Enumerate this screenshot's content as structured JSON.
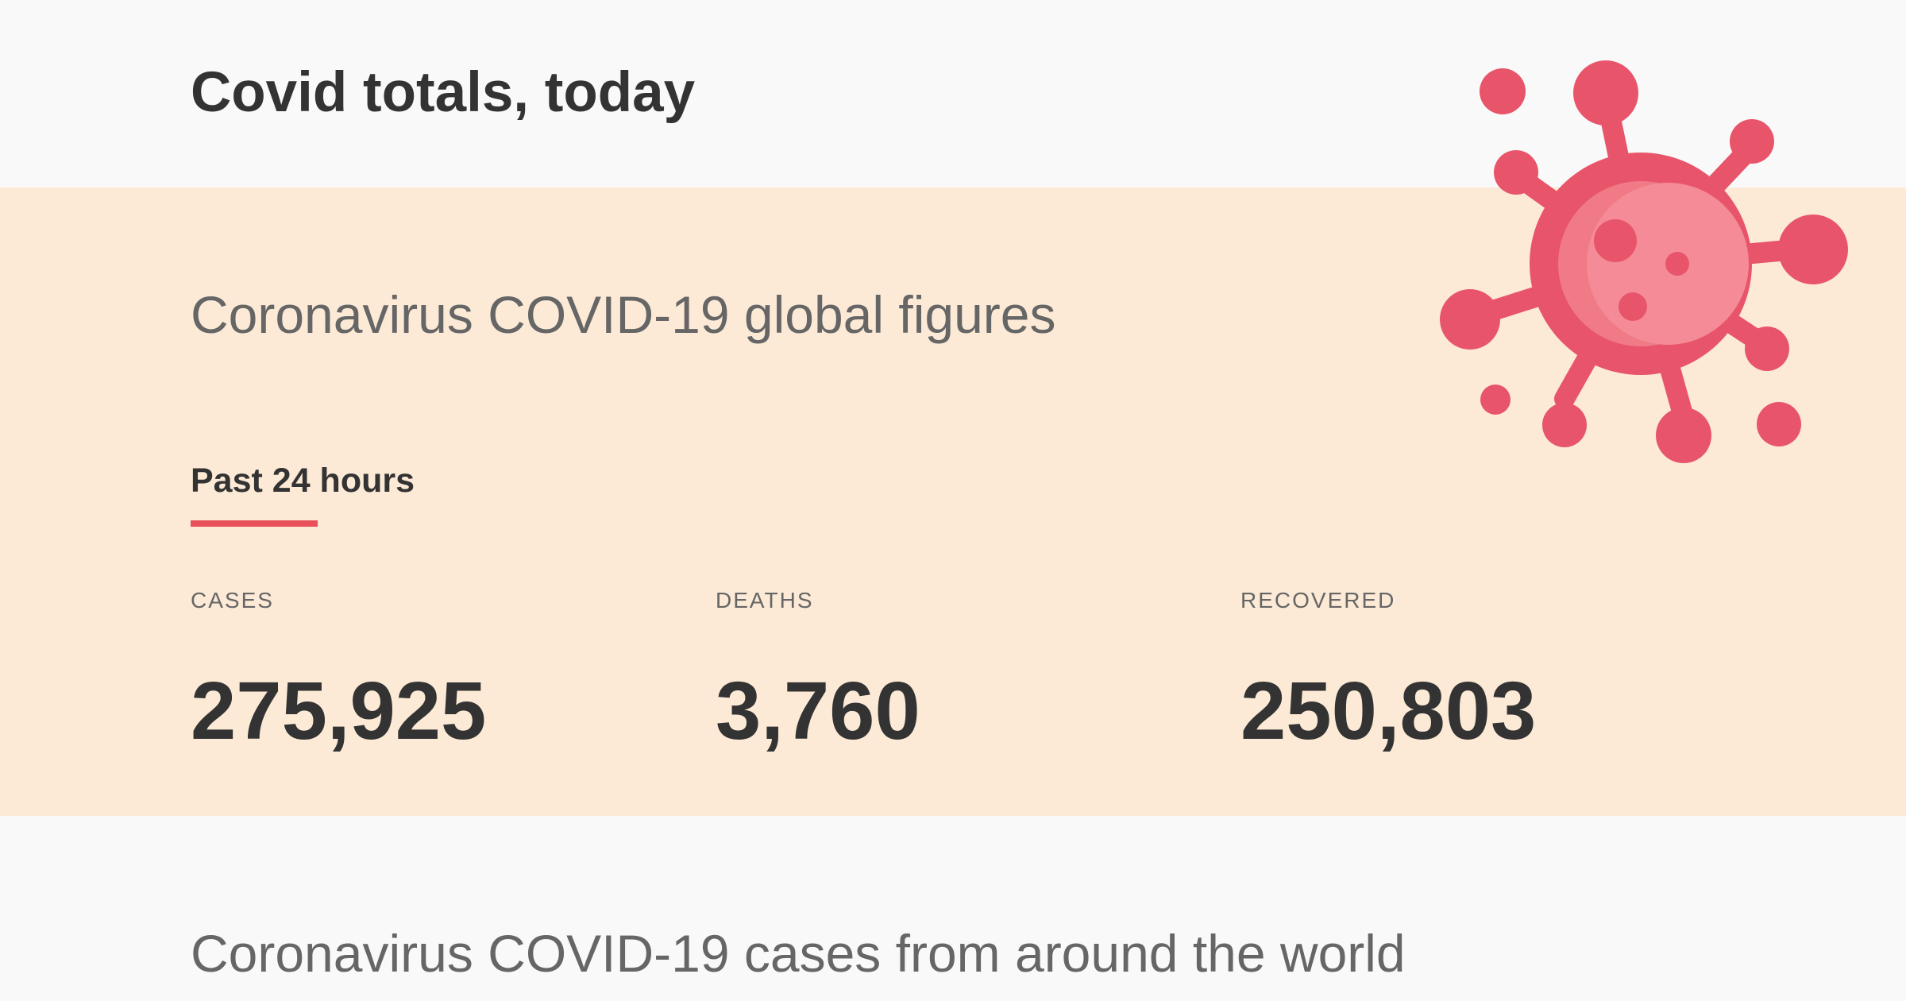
{
  "header": {
    "title": "Covid totals, today"
  },
  "summary": {
    "heading": "Coronavirus COVID-19 global figures",
    "period_label": "Past 24 hours",
    "accent_color": "#e8505b",
    "stats": [
      {
        "label": "CASES",
        "value": "275,925"
      },
      {
        "label": "DEATHS",
        "value": "3,760"
      },
      {
        "label": "RECOVERED",
        "value": "250,803"
      }
    ]
  },
  "illustration": {
    "icon": "coronavirus-icon",
    "color": "#e8556a"
  },
  "section": {
    "heading": "Coronavirus COVID-19 cases from around the world"
  }
}
